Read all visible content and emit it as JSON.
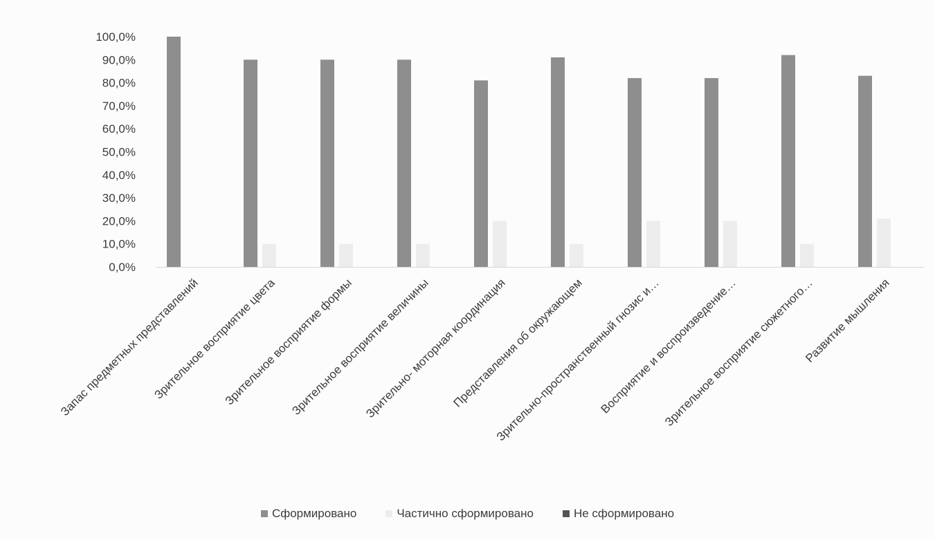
{
  "chart_data": {
    "type": "bar",
    "title": "",
    "xlabel": "",
    "ylabel": "",
    "ylim": [
      0,
      100
    ],
    "yticks": [
      "0,0%",
      "10,0%",
      "20,0%",
      "30,0%",
      "40,0%",
      "50,0%",
      "60,0%",
      "70,0%",
      "80,0%",
      "90,0%",
      "100,0%"
    ],
    "grid": false,
    "legend_position": "bottom",
    "categories": [
      "Запас предметных представлений",
      "Зрительное восприятие цвета",
      "Зрительное восприятие формы",
      "Зрительное восприятие величины",
      "Зрительно- моторная координация",
      "Представления об окружающем",
      "Зрительно-пространственный гнозис и…",
      "Восприятие и воспроизведение…",
      "Зрительное восприятие сюжетного…",
      "Развитие мышления"
    ],
    "series": [
      {
        "name": "Сформировано",
        "color": "#8e8e8e",
        "values": [
          100,
          90,
          90,
          90,
          81,
          91,
          82,
          82,
          92,
          83
        ]
      },
      {
        "name": "Частично сформировано",
        "color": "#ededed",
        "values": [
          0,
          10,
          10,
          10,
          20,
          10,
          20,
          20,
          10,
          21
        ]
      },
      {
        "name": "Не сформировано",
        "color": "#555555",
        "values": [
          0,
          0,
          0,
          0,
          0,
          0,
          0,
          0,
          0,
          0
        ]
      }
    ]
  }
}
